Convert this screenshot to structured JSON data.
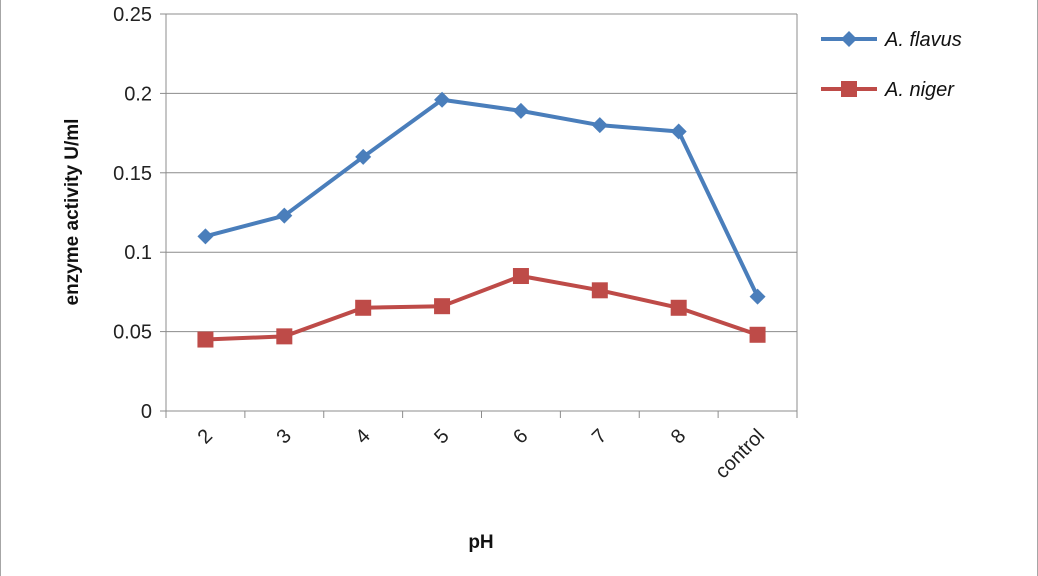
{
  "chart_data": {
    "type": "line",
    "title": "",
    "xlabel": "pH",
    "ylabel": "enzyme activity U/ml",
    "categories": [
      "2",
      "3",
      "4",
      "5",
      "6",
      "7",
      "8",
      "control"
    ],
    "ylim": [
      0,
      0.25
    ],
    "yticks": [
      0,
      0.05,
      0.1,
      0.15,
      0.2,
      0.25
    ],
    "ytick_labels": [
      "0",
      "0.05",
      "0.1",
      "0.15",
      "0.2",
      "0.25"
    ],
    "grid": "horizontal",
    "legend_position": "top-right",
    "series": [
      {
        "name": "A. flavus",
        "marker": "diamond",
        "color": "#4a7ebb",
        "values": [
          0.11,
          0.123,
          0.16,
          0.196,
          0.189,
          0.18,
          0.176,
          0.072
        ]
      },
      {
        "name": "A. niger",
        "marker": "square",
        "color": "#be4b48",
        "values": [
          0.045,
          0.047,
          0.065,
          0.066,
          0.085,
          0.076,
          0.065,
          0.048
        ]
      }
    ]
  }
}
